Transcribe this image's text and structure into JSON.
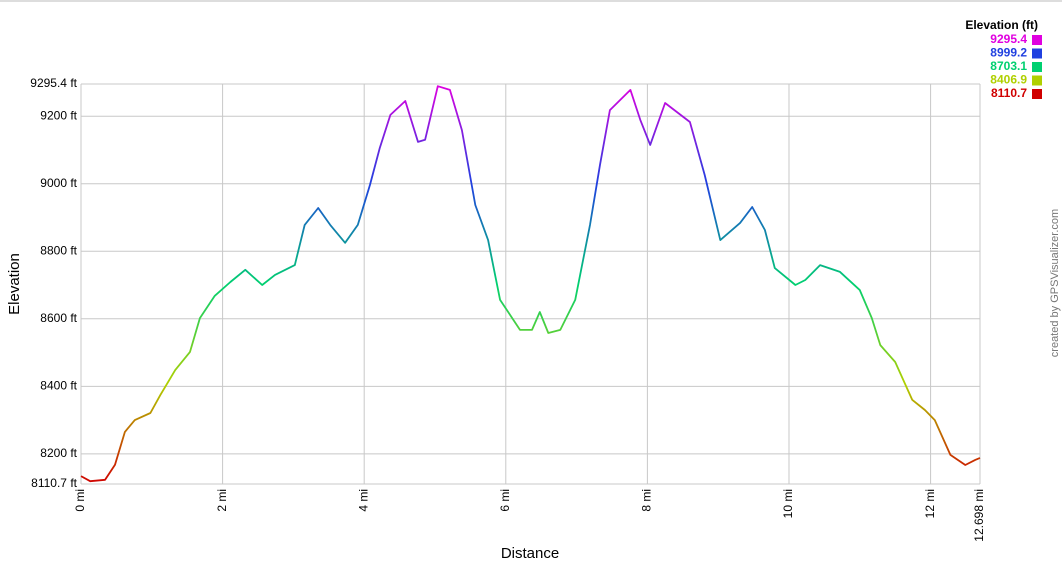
{
  "chart_data": {
    "type": "line",
    "x_label": "Distance",
    "y_label": "Elevation",
    "credit": "created by GPSVisualizer.com",
    "legend_title": "Elevation (ft)",
    "color_scale": [
      {
        "value": 9295.4,
        "color": "#e000e0"
      },
      {
        "value": 8999.2,
        "color": "#2040e0"
      },
      {
        "value": 8703.1,
        "color": "#00d070"
      },
      {
        "value": 8406.9,
        "color": "#b0d000"
      },
      {
        "value": 8110.7,
        "color": "#d00000"
      }
    ],
    "grid": true,
    "xlim": [
      0,
      12.698
    ],
    "ylim": [
      8110.7,
      9295.4
    ],
    "xticks": [
      {
        "value": 0,
        "label": "0 mi"
      },
      {
        "value": 2,
        "label": "2 mi"
      },
      {
        "value": 4,
        "label": "4 mi"
      },
      {
        "value": 6,
        "label": "6 mi"
      },
      {
        "value": 8,
        "label": "8 mi"
      },
      {
        "value": 10,
        "label": "10 mi"
      },
      {
        "value": 12,
        "label": "12 mi"
      },
      {
        "value": 12.698,
        "label": "12.698 mi"
      }
    ],
    "yticks": [
      {
        "value": 8110.7,
        "label": "8110.7 ft"
      },
      {
        "value": 8200,
        "label": "8200 ft"
      },
      {
        "value": 8400,
        "label": "8400 ft"
      },
      {
        "value": 8600,
        "label": "8600 ft"
      },
      {
        "value": 8800,
        "label": "8800 ft"
      },
      {
        "value": 9000,
        "label": "9000 ft"
      },
      {
        "value": 9200,
        "label": "9200 ft"
      },
      {
        "value": 9295.4,
        "label": "9295.4 ft"
      }
    ],
    "x": [
      0,
      0.13,
      0.34,
      0.48,
      0.62,
      0.76,
      0.98,
      1.12,
      1.33,
      1.54,
      1.68,
      1.89,
      2.11,
      2.32,
      2.56,
      2.74,
      3.02,
      3.16,
      3.35,
      3.52,
      3.73,
      3.91,
      4.08,
      4.22,
      4.37,
      4.58,
      4.76,
      4.86,
      5.04,
      5.21,
      5.38,
      5.57,
      5.75,
      5.92,
      6.09,
      6.2,
      6.37,
      6.48,
      6.6,
      6.77,
      6.98,
      7.19,
      7.33,
      7.47,
      7.76,
      7.9,
      8.04,
      8.25,
      8.6,
      8.81,
      9.03,
      9.31,
      9.48,
      9.66,
      9.8,
      10.09,
      10.23,
      10.44,
      10.72,
      11.0,
      11.17,
      11.29,
      11.5,
      11.74,
      11.92,
      12.06,
      12.28,
      12.49,
      12.63,
      12.698
    ],
    "values": [
      8134,
      8119,
      8123,
      8168,
      8265,
      8300,
      8321,
      8374,
      8448,
      8502,
      8602,
      8668,
      8709,
      8745,
      8700,
      8730,
      8759,
      8878,
      8928,
      8878,
      8825,
      8878,
      8996,
      9106,
      9204,
      9245,
      9124,
      9130,
      9289,
      9278,
      9159,
      8937,
      8833,
      8656,
      8602,
      8567,
      8567,
      8620,
      8558,
      8567,
      8656,
      8878,
      9056,
      9218,
      9278,
      9189,
      9115,
      9239,
      9183,
      9026,
      8833,
      8884,
      8931,
      8863,
      8750,
      8700,
      8715,
      8759,
      8739,
      8685,
      8602,
      8522,
      8472,
      8360,
      8330,
      8300,
      8197,
      8167,
      8182,
      8188
    ]
  }
}
